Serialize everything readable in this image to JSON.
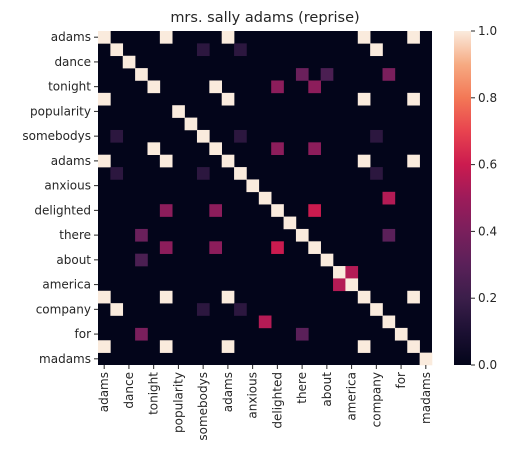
{
  "chart_data": {
    "type": "heatmap",
    "title": "mrs. sally adams (reprise)",
    "rows": [
      "adams",
      "",
      "dance",
      "",
      "tonight",
      "",
      "popularity",
      "",
      "somebodys",
      "",
      "adams",
      "",
      "anxious",
      "",
      "delighted",
      "",
      "there",
      "",
      "about",
      "",
      "america",
      "",
      "company",
      "",
      "for",
      "",
      "madams"
    ],
    "columns": [
      "adams",
      "",
      "dance",
      "",
      "tonight",
      "",
      "popularity",
      "",
      "somebodys",
      "",
      "adams",
      "",
      "anxious",
      "",
      "delighted",
      "",
      "there",
      "",
      "about",
      "",
      "america",
      "",
      "company",
      "",
      "for",
      "",
      "madams"
    ],
    "colorbar": {
      "min": 0.0,
      "max": 1.0,
      "ticks": [
        "0.0",
        "0.2",
        "0.4",
        "0.6",
        "0.8",
        "1.0"
      ]
    },
    "cells": [
      [
        0,
        0,
        1
      ],
      [
        0,
        5,
        1
      ],
      [
        0,
        10,
        1
      ],
      [
        0,
        21,
        1
      ],
      [
        0,
        25,
        1
      ],
      [
        1,
        1,
        1
      ],
      [
        1,
        8,
        0.15
      ],
      [
        1,
        11,
        0.15
      ],
      [
        1,
        22,
        1
      ],
      [
        2,
        2,
        1
      ],
      [
        3,
        3,
        1
      ],
      [
        3,
        16,
        0.35
      ],
      [
        3,
        18,
        0.25
      ],
      [
        3,
        23,
        0.4
      ],
      [
        4,
        4,
        1
      ],
      [
        4,
        9,
        1
      ],
      [
        4,
        14,
        0.45
      ],
      [
        4,
        17,
        0.45
      ],
      [
        5,
        0,
        1
      ],
      [
        5,
        10,
        1
      ],
      [
        5,
        21,
        1
      ],
      [
        5,
        25,
        1
      ],
      [
        6,
        6,
        1
      ],
      [
        7,
        7,
        1
      ],
      [
        8,
        1,
        0.15
      ],
      [
        8,
        8,
        1
      ],
      [
        8,
        11,
        0.15
      ],
      [
        8,
        22,
        0.15
      ],
      [
        9,
        4,
        1
      ],
      [
        9,
        9,
        1
      ],
      [
        9,
        14,
        0.45
      ],
      [
        9,
        17,
        0.45
      ],
      [
        10,
        0,
        1
      ],
      [
        10,
        5,
        1
      ],
      [
        10,
        10,
        1
      ],
      [
        10,
        21,
        1
      ],
      [
        10,
        25,
        1
      ],
      [
        11,
        1,
        0.15
      ],
      [
        11,
        8,
        0.15
      ],
      [
        11,
        11,
        1
      ],
      [
        11,
        22,
        0.15
      ],
      [
        12,
        12,
        1
      ],
      [
        13,
        13,
        1
      ],
      [
        13,
        23,
        0.55
      ],
      [
        14,
        5,
        0.45
      ],
      [
        14,
        9,
        0.45
      ],
      [
        14,
        14,
        1
      ],
      [
        14,
        17,
        0.6
      ],
      [
        15,
        15,
        1
      ],
      [
        16,
        3,
        0.35
      ],
      [
        16,
        16,
        1
      ],
      [
        16,
        23,
        0.3
      ],
      [
        17,
        5,
        0.45
      ],
      [
        17,
        9,
        0.45
      ],
      [
        17,
        14,
        0.6
      ],
      [
        17,
        17,
        1
      ],
      [
        18,
        3,
        0.25
      ],
      [
        18,
        18,
        1
      ],
      [
        19,
        19,
        1
      ],
      [
        19,
        20,
        0.55
      ],
      [
        20,
        19,
        0.55
      ],
      [
        20,
        20,
        1
      ],
      [
        21,
        0,
        1
      ],
      [
        21,
        5,
        1
      ],
      [
        21,
        10,
        1
      ],
      [
        21,
        21,
        1
      ],
      [
        21,
        25,
        1
      ],
      [
        22,
        1,
        1
      ],
      [
        22,
        8,
        0.15
      ],
      [
        22,
        11,
        0.15
      ],
      [
        22,
        22,
        1
      ],
      [
        23,
        13,
        0.55
      ],
      [
        23,
        23,
        1
      ],
      [
        24,
        3,
        0.4
      ],
      [
        24,
        16,
        0.3
      ],
      [
        24,
        24,
        1
      ],
      [
        25,
        0,
        1
      ],
      [
        25,
        5,
        1
      ],
      [
        25,
        10,
        1
      ],
      [
        25,
        21,
        1
      ],
      [
        25,
        25,
        1
      ],
      [
        26,
        26,
        1
      ]
    ]
  }
}
